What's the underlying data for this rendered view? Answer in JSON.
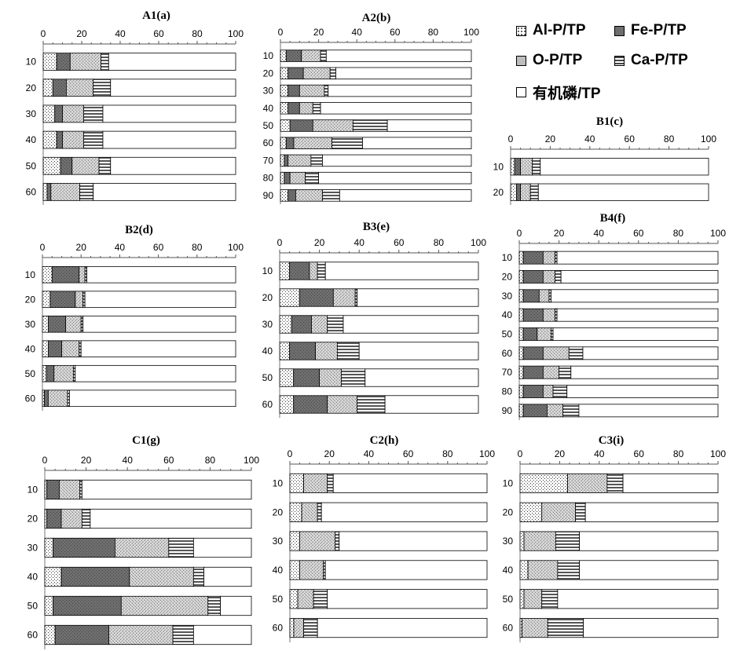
{
  "legend": {
    "items": [
      {
        "key": "al",
        "label": "Al-P/TP",
        "pattern": "dots",
        "color": "#ffffff"
      },
      {
        "key": "fe",
        "label": "Fe-P/TP",
        "pattern": "solid",
        "color": "#6e6e6e"
      },
      {
        "key": "o",
        "label": "O-P/TP",
        "pattern": "texture",
        "color": "#bdbdbd"
      },
      {
        "key": "ca",
        "label": "Ca-P/TP",
        "pattern": "hlines",
        "color": "#9a9a9a"
      },
      {
        "key": "org",
        "label": "有机磷/TP",
        "pattern": "none",
        "color": "#ffffff"
      }
    ]
  },
  "chart_data": [
    {
      "id": "A1",
      "title": "A1(a)",
      "type": "bar",
      "orientation": "horizontal",
      "stacked": true,
      "xlim": [
        0,
        100
      ],
      "ticks": [
        0,
        20,
        40,
        60,
        80,
        100
      ],
      "categories": [
        "10",
        "20",
        "30",
        "40",
        "50",
        "60"
      ],
      "series": [
        {
          "key": "al",
          "values": [
            7,
            5,
            6,
            7,
            9,
            2
          ]
        },
        {
          "key": "fe",
          "values": [
            7,
            7,
            4,
            3,
            6,
            2
          ]
        },
        {
          "key": "o",
          "values": [
            16,
            14,
            11,
            11,
            14,
            15
          ]
        },
        {
          "key": "ca",
          "values": [
            4,
            9,
            10,
            10,
            6,
            7
          ]
        },
        {
          "key": "org",
          "values": [
            66,
            65,
            69,
            69,
            65,
            74
          ]
        }
      ]
    },
    {
      "id": "A2",
      "title": "A2(b)",
      "type": "bar",
      "orientation": "horizontal",
      "stacked": true,
      "xlim": [
        0,
        100
      ],
      "ticks": [
        0,
        20,
        40,
        60,
        80,
        100
      ],
      "categories": [
        "10",
        "20",
        "30",
        "40",
        "50",
        "60",
        "70",
        "80",
        "90"
      ],
      "series": [
        {
          "key": "al",
          "values": [
            3,
            4,
            4,
            4,
            5,
            3,
            2,
            2,
            4
          ]
        },
        {
          "key": "fe",
          "values": [
            8,
            8,
            6,
            6,
            12,
            4,
            2,
            3,
            4
          ]
        },
        {
          "key": "o",
          "values": [
            10,
            14,
            13,
            7,
            21,
            20,
            12,
            8,
            14
          ]
        },
        {
          "key": "ca",
          "values": [
            3,
            3,
            2,
            4,
            18,
            16,
            6,
            7,
            9
          ]
        },
        {
          "key": "org",
          "values": [
            76,
            71,
            75,
            79,
            44,
            57,
            78,
            80,
            69
          ]
        }
      ]
    },
    {
      "id": "B1",
      "title": "B1(c)",
      "type": "bar",
      "orientation": "horizontal",
      "stacked": true,
      "xlim": [
        0,
        100
      ],
      "ticks": [
        0,
        20,
        40,
        60,
        80,
        100
      ],
      "categories": [
        "10",
        "20"
      ],
      "series": [
        {
          "key": "al",
          "values": [
            2,
            3
          ]
        },
        {
          "key": "fe",
          "values": [
            3,
            2
          ]
        },
        {
          "key": "o",
          "values": [
            6,
            5
          ]
        },
        {
          "key": "ca",
          "values": [
            4,
            4
          ]
        },
        {
          "key": "org",
          "values": [
            85,
            86
          ]
        }
      ]
    },
    {
      "id": "B2",
      "title": "B2(d)",
      "type": "bar",
      "orientation": "horizontal",
      "stacked": true,
      "xlim": [
        0,
        100
      ],
      "ticks": [
        0,
        20,
        40,
        60,
        80,
        100
      ],
      "categories": [
        "10",
        "20",
        "30",
        "40",
        "50",
        "60"
      ],
      "series": [
        {
          "key": "al",
          "values": [
            5,
            4,
            3,
            3,
            2,
            1
          ]
        },
        {
          "key": "fe",
          "values": [
            14,
            13,
            9,
            7,
            4,
            2
          ]
        },
        {
          "key": "o",
          "values": [
            3,
            4,
            8,
            9,
            10,
            10
          ]
        },
        {
          "key": "ca",
          "values": [
            1,
            1,
            1,
            1,
            1,
            1
          ]
        },
        {
          "key": "org",
          "values": [
            77,
            78,
            79,
            80,
            83,
            86
          ]
        }
      ]
    },
    {
      "id": "B3",
      "title": "B3(e)",
      "type": "bar",
      "orientation": "horizontal",
      "stacked": true,
      "xlim": [
        0,
        100
      ],
      "ticks": [
        0,
        20,
        40,
        60,
        80,
        100
      ],
      "categories": [
        "10",
        "20",
        "30",
        "40",
        "50",
        "60"
      ],
      "series": [
        {
          "key": "al",
          "values": [
            5,
            10,
            6,
            5,
            7,
            7
          ]
        },
        {
          "key": "fe",
          "values": [
            10,
            17,
            10,
            13,
            13,
            17
          ]
        },
        {
          "key": "o",
          "values": [
            4,
            11,
            8,
            11,
            11,
            15
          ]
        },
        {
          "key": "ca",
          "values": [
            4,
            1,
            8,
            11,
            12,
            14
          ]
        },
        {
          "key": "org",
          "values": [
            77,
            61,
            68,
            60,
            57,
            47
          ]
        }
      ]
    },
    {
      "id": "B4",
      "title": "B4(f)",
      "type": "bar",
      "orientation": "horizontal",
      "stacked": true,
      "xlim": [
        0,
        100
      ],
      "ticks": [
        0,
        20,
        40,
        60,
        80,
        100
      ],
      "categories": [
        "10",
        "20",
        "30",
        "40",
        "50",
        "60",
        "70",
        "80",
        "90"
      ],
      "series": [
        {
          "key": "al",
          "values": [
            2,
            2,
            2,
            2,
            2,
            2,
            2,
            2,
            2
          ]
        },
        {
          "key": "fe",
          "values": [
            10,
            10,
            8,
            10,
            7,
            10,
            10,
            10,
            12
          ]
        },
        {
          "key": "o",
          "values": [
            6,
            6,
            5,
            6,
            7,
            13,
            8,
            5,
            8
          ]
        },
        {
          "key": "ca",
          "values": [
            1,
            3,
            1,
            1,
            1,
            7,
            6,
            7,
            8
          ]
        },
        {
          "key": "org",
          "values": [
            81,
            79,
            84,
            81,
            83,
            68,
            74,
            76,
            70
          ]
        }
      ]
    },
    {
      "id": "C1",
      "title": "C1(g)",
      "type": "bar",
      "orientation": "horizontal",
      "stacked": true,
      "xlim": [
        0,
        100
      ],
      "ticks": [
        0,
        20,
        40,
        60,
        80,
        100
      ],
      "categories": [
        "10",
        "20",
        "30",
        "40",
        "50",
        "60"
      ],
      "series": [
        {
          "key": "al",
          "values": [
            1,
            1,
            4,
            8,
            4,
            5
          ]
        },
        {
          "key": "fe",
          "values": [
            6,
            7,
            30,
            33,
            33,
            26
          ]
        },
        {
          "key": "o",
          "values": [
            10,
            10,
            26,
            31,
            42,
            31
          ]
        },
        {
          "key": "ca",
          "values": [
            1,
            4,
            12,
            5,
            6,
            10
          ]
        },
        {
          "key": "org",
          "values": [
            82,
            78,
            28,
            23,
            15,
            28
          ]
        }
      ]
    },
    {
      "id": "C2",
      "title": "C2(h)",
      "type": "bar",
      "orientation": "horizontal",
      "stacked": true,
      "xlim": [
        0,
        100
      ],
      "ticks": [
        0,
        20,
        40,
        60,
        80,
        100
      ],
      "categories": [
        "10",
        "20",
        "30",
        "40",
        "50",
        "60"
      ],
      "series": [
        {
          "key": "al",
          "values": [
            7,
            6,
            5,
            5,
            4,
            2
          ]
        },
        {
          "key": "fe",
          "values": [
            0,
            0,
            0,
            0,
            0,
            0
          ]
        },
        {
          "key": "o",
          "values": [
            12,
            8,
            18,
            12,
            8,
            5
          ]
        },
        {
          "key": "ca",
          "values": [
            3,
            2,
            2,
            1,
            7,
            7
          ]
        },
        {
          "key": "org",
          "values": [
            78,
            84,
            75,
            82,
            81,
            86
          ]
        }
      ]
    },
    {
      "id": "C3",
      "title": "C3(i)",
      "type": "bar",
      "orientation": "horizontal",
      "stacked": true,
      "xlim": [
        0,
        100
      ],
      "ticks": [
        0,
        20,
        40,
        60,
        80,
        100
      ],
      "categories": [
        "10",
        "20",
        "30",
        "40",
        "50",
        "60"
      ],
      "series": [
        {
          "key": "al",
          "values": [
            24,
            11,
            2,
            4,
            2,
            1
          ]
        },
        {
          "key": "fe",
          "values": [
            0,
            0,
            0,
            0,
            0,
            0
          ]
        },
        {
          "key": "o",
          "values": [
            20,
            17,
            16,
            15,
            9,
            13
          ]
        },
        {
          "key": "ca",
          "values": [
            8,
            5,
            12,
            11,
            8,
            18
          ]
        },
        {
          "key": "org",
          "values": [
            48,
            67,
            70,
            70,
            81,
            68
          ]
        }
      ]
    }
  ]
}
